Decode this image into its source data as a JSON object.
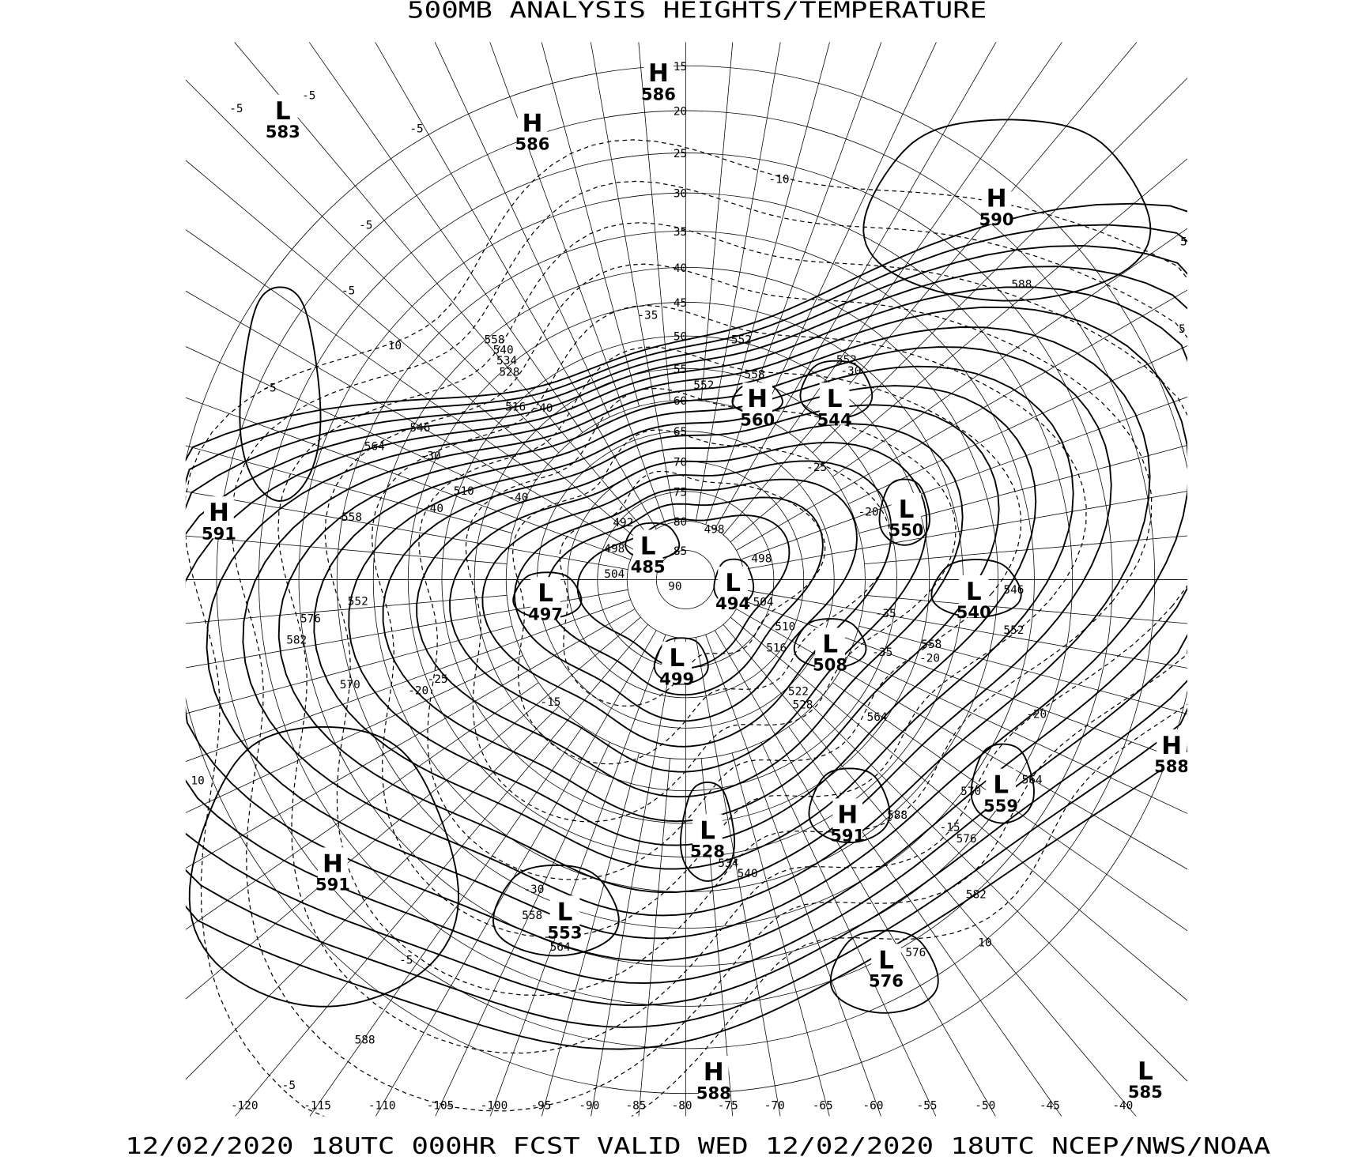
{
  "title": "500MB ANALYSIS  HEIGHTS/TEMPERATURE",
  "footer": "12/02/2020 18UTC 000HR FCST VALID WED 12/02/2020 18UTC  NCEP/NWS/NOAA",
  "map": {
    "projection": "polar stereographic",
    "line_color": "#000000",
    "background": "#ffffff",
    "latitude_labels": [
      "15",
      "20",
      "25",
      "30",
      "35",
      "40",
      "45",
      "50",
      "55",
      "60",
      "65",
      "70",
      "75",
      "80",
      "85",
      "90"
    ],
    "longitude_labels": [
      "-120",
      "-115",
      "-110",
      "-105",
      "-100",
      "-95",
      "-90",
      "-85",
      "-80",
      "-75",
      "-70",
      "-65",
      "-60",
      "-55",
      "-50",
      "-45",
      "-40"
    ],
    "pressure_centers": [
      {
        "type": "L",
        "value": "583"
      },
      {
        "type": "H",
        "value": "586"
      },
      {
        "type": "H",
        "value": "586"
      },
      {
        "type": "H",
        "value": "590"
      },
      {
        "type": "H",
        "value": "591"
      },
      {
        "type": "H",
        "value": "560"
      },
      {
        "type": "L",
        "value": "544"
      },
      {
        "type": "L",
        "value": "550"
      },
      {
        "type": "L",
        "value": "485"
      },
      {
        "type": "L",
        "value": "497"
      },
      {
        "type": "L",
        "value": "494"
      },
      {
        "type": "L",
        "value": "540"
      },
      {
        "type": "L",
        "value": "508"
      },
      {
        "type": "L",
        "value": "499"
      },
      {
        "type": "H",
        "value": "588"
      },
      {
        "type": "L",
        "value": "559"
      },
      {
        "type": "H",
        "value": "591"
      },
      {
        "type": "L",
        "value": "528"
      },
      {
        "type": "H",
        "value": "591"
      },
      {
        "type": "L",
        "value": "553"
      },
      {
        "type": "L",
        "value": "576"
      },
      {
        "type": "H",
        "value": "588"
      },
      {
        "type": "L",
        "value": "585"
      }
    ],
    "height_labels": [
      "588",
      "552",
      "558",
      "552",
      "540",
      "534",
      "528",
      "516",
      "546",
      "564",
      "510",
      "558",
      "552",
      "576",
      "582",
      "570",
      "492",
      "498",
      "504",
      "498",
      "498",
      "504",
      "510",
      "516",
      "522",
      "528",
      "564",
      "558",
      "546",
      "552",
      "564",
      "570",
      "576",
      "582",
      "588",
      "534",
      "540",
      "558",
      "564",
      "576",
      "588",
      "558",
      "552"
    ],
    "temperature_labels": [
      "-35",
      "-40",
      "-30",
      "-40",
      "-40",
      "-25",
      "-20",
      "-35",
      "-20",
      "-20",
      "-15",
      "10",
      "-10",
      "-5",
      "-5",
      "-5",
      "-5",
      "-5",
      "10",
      "-5",
      "-25",
      "-20",
      "-15",
      "10",
      "-30",
      "-5",
      "-5",
      "5",
      "5",
      "-30",
      "-35"
    ]
  }
}
